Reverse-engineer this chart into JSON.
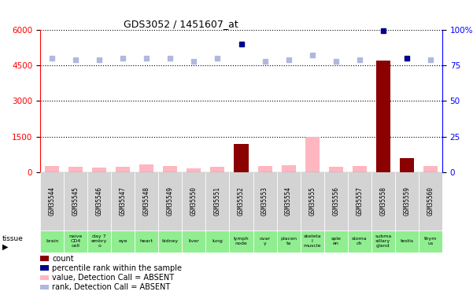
{
  "title": "GDS3052 / 1451607_at",
  "samples": [
    "GSM35544",
    "GSM35545",
    "GSM35546",
    "GSM35547",
    "GSM35548",
    "GSM35549",
    "GSM35550",
    "GSM35551",
    "GSM35552",
    "GSM35553",
    "GSM35554",
    "GSM35555",
    "GSM35556",
    "GSM35557",
    "GSM35558",
    "GSM35559",
    "GSM35560"
  ],
  "tissues": [
    "brain",
    "naive\nCD4\ncell",
    "day 7\nembry\no",
    "eye",
    "heart",
    "kidney",
    "liver",
    "lung",
    "lymph\nnode",
    "ovar\ny",
    "placen\nta",
    "skeleta\nl\nmuscle",
    "sple\nen",
    "stoma\nch",
    "subma\nxillary\ngland",
    "testis",
    "thym\nus"
  ],
  "values": [
    270,
    230,
    220,
    250,
    340,
    290,
    170,
    230,
    1200,
    270,
    300,
    1510,
    250,
    290,
    4700,
    600,
    270
  ],
  "ranks": [
    80,
    79,
    79,
    80,
    80,
    80,
    78,
    80,
    90,
    78,
    79,
    82,
    78,
    79,
    99,
    80,
    79
  ],
  "detection": [
    "A",
    "A",
    "A",
    "A",
    "A",
    "A",
    "A",
    "A",
    "P",
    "A",
    "A",
    "A",
    "A",
    "A",
    "P",
    "P",
    "A"
  ],
  "ylim_left": [
    0,
    6000
  ],
  "ylim_right": [
    0,
    100
  ],
  "yticks_left": [
    0,
    1500,
    3000,
    4500,
    6000
  ],
  "yticks_right": [
    0,
    25,
    50,
    75,
    100
  ],
  "yticklabels_right": [
    "0",
    "25",
    "50",
    "75",
    "100%"
  ],
  "bar_color_absent": "#ffb6c1",
  "bar_color_present": "#8b0000",
  "rank_color_absent": "#b0b8e0",
  "rank_color_present": "#00008b",
  "tissue_color": "#90ee90",
  "sample_box_color": "#d3d3d3",
  "bg_color": "#ffffff",
  "title_fontsize": 9,
  "legend_items": [
    {
      "color": "#8b0000",
      "label": "count"
    },
    {
      "color": "#00008b",
      "label": "percentile rank within the sample"
    },
    {
      "color": "#ffb6c1",
      "label": "value, Detection Call = ABSENT"
    },
    {
      "color": "#b0b8e0",
      "label": "rank, Detection Call = ABSENT"
    }
  ]
}
